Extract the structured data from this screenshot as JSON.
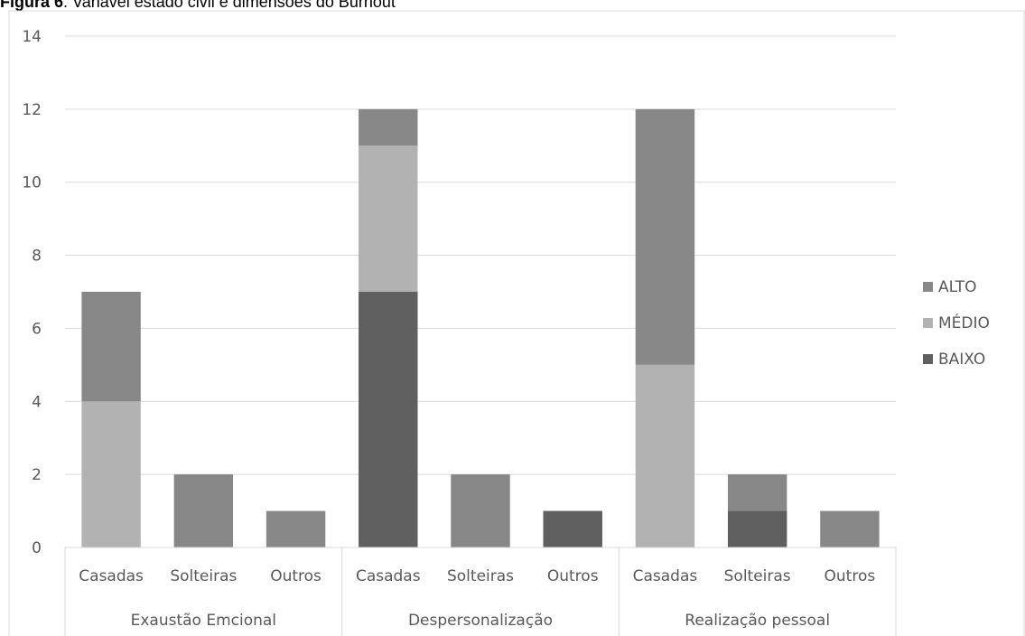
{
  "caption": {
    "label": "Figura 6",
    "text": ": Variável estado civil e dimensões do Burnout"
  },
  "chart_data": {
    "type": "bar",
    "stacked": true,
    "ylim": [
      0,
      14
    ],
    "yticks": [
      "0",
      "2",
      "4",
      "6",
      "8",
      "10",
      "12",
      "14"
    ],
    "grid": true,
    "legend_position": "right",
    "groups": [
      "Exaustão Emcional",
      "Despersonalização",
      "Realização pessoal"
    ],
    "categories": [
      "Casadas",
      "Solteiras",
      "Outros",
      "Casadas",
      "Solteiras",
      "Outros",
      "Casadas",
      "Solteiras",
      "Outros"
    ],
    "series": [
      {
        "name": "BAIXO",
        "color": "#5f5f5f",
        "values": [
          0,
          0,
          0,
          7,
          0,
          1,
          0,
          1,
          0
        ]
      },
      {
        "name": "MÉDIO",
        "color": "#b2b2b2",
        "values": [
          4,
          0,
          0,
          4,
          0,
          0,
          5,
          0,
          0
        ]
      },
      {
        "name": "ALTO",
        "color": "#878787",
        "values": [
          3,
          2,
          1,
          1,
          2,
          0,
          7,
          1,
          1
        ]
      }
    ],
    "legend_order": [
      "ALTO",
      "MÉDIO",
      "BAIXO"
    ]
  }
}
